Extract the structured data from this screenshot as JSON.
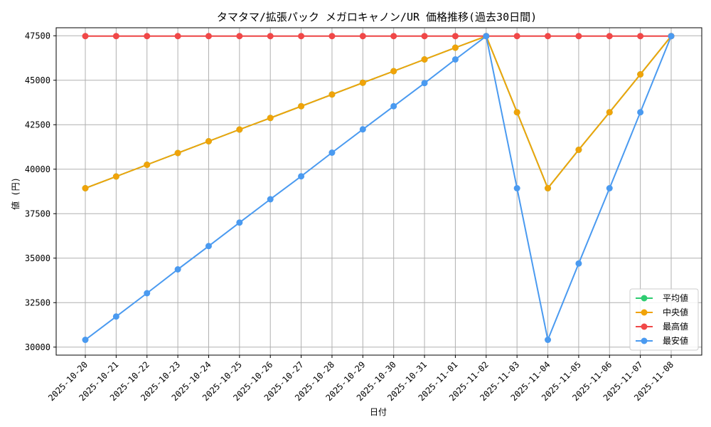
{
  "chart_data": {
    "type": "line",
    "title": "タマタマ/拡張パック メガロキャノン/UR 価格推移(過去30日間)",
    "xlabel": "日付",
    "ylabel": "値 (円)",
    "categories": [
      "2025-10-20",
      "2025-10-21",
      "2025-10-22",
      "2025-10-23",
      "2025-10-24",
      "2025-10-25",
      "2025-10-26",
      "2025-10-27",
      "2025-10-28",
      "2025-10-29",
      "2025-10-30",
      "2025-10-31",
      "2025-11-01",
      "2025-11-02",
      "2025-11-03",
      "2025-11-04",
      "2025-11-05",
      "2025-11-06",
      "2025-11-07",
      "2025-11-08"
    ],
    "yticks": [
      30000,
      32500,
      35000,
      37500,
      40000,
      42500,
      45000,
      47500
    ],
    "ylim": [
      29550,
      47950
    ],
    "grid": true,
    "legend_position": "bottom-right",
    "series": [
      {
        "name": "平均値",
        "color": "#2ecc71",
        "values": [
          38930,
          39590,
          40250,
          40910,
          41570,
          42230,
          42880,
          43540,
          44200,
          44860,
          45510,
          46170,
          46830,
          47480,
          43200,
          38930,
          41090,
          43200,
          45330,
          47480
        ]
      },
      {
        "name": "中央値",
        "color": "#f0a30a",
        "values": [
          38930,
          39590,
          40250,
          40910,
          41570,
          42230,
          42880,
          43540,
          44200,
          44860,
          45510,
          46170,
          46830,
          47480,
          43200,
          38930,
          41090,
          43200,
          45330,
          47480
        ]
      },
      {
        "name": "最高値",
        "color": "#f04848",
        "values": [
          47480,
          47480,
          47480,
          47480,
          47480,
          47480,
          47480,
          47480,
          47480,
          47480,
          47480,
          47480,
          47480,
          47480,
          47480,
          47480,
          47480,
          47480,
          47480,
          47480
        ]
      },
      {
        "name": "最安値",
        "color": "#4a9af0",
        "values": [
          30410,
          31720,
          33030,
          34370,
          35680,
          37000,
          38310,
          39600,
          40930,
          42240,
          43540,
          44840,
          46170,
          47480,
          38930,
          30410,
          34700,
          38930,
          43200,
          47480
        ]
      }
    ]
  }
}
